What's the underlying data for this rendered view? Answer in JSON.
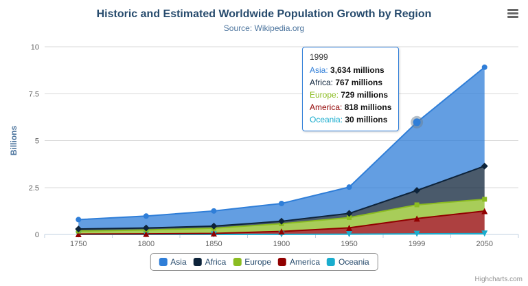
{
  "header": {
    "title": "Historic and Estimated Worldwide Population Growth by Region",
    "subtitle": "Source: Wikipedia.org"
  },
  "chart_data": {
    "type": "area",
    "stacking": "normal",
    "title": "Historic and Estimated Worldwide Population Growth by Region",
    "subtitle": "Source: Wikipedia.org",
    "categories": [
      "1750",
      "1800",
      "1850",
      "1900",
      "1950",
      "1999",
      "2050"
    ],
    "series": [
      {
        "name": "Asia",
        "color": "#2f7ed8",
        "marker": "circle",
        "values": [
          502,
          635,
          809,
          947,
          1402,
          3634,
          5268
        ]
      },
      {
        "name": "Africa",
        "color": "#0d233a",
        "marker": "diamond",
        "values": [
          106,
          107,
          111,
          133,
          221,
          767,
          1766
        ]
      },
      {
        "name": "Europe",
        "color": "#8bbc21",
        "marker": "square",
        "values": [
          163,
          203,
          276,
          408,
          547,
          729,
          628
        ]
      },
      {
        "name": "America",
        "color": "#910000",
        "marker": "triangle",
        "values": [
          18,
          31,
          54,
          156,
          339,
          818,
          1201
        ]
      },
      {
        "name": "Oceania",
        "color": "#1aadce",
        "marker": "triangle-down",
        "values": [
          2,
          2,
          2,
          6,
          13,
          30,
          46
        ]
      }
    ],
    "values_unit": "millions",
    "xlabel": "",
    "ylabel": "Billions",
    "ylim": [
      0,
      10
    ],
    "yticks": [
      0,
      2.5,
      5,
      7.5,
      10
    ],
    "grid": true,
    "legend_position": "bottom",
    "hover_point": {
      "series": "Asia",
      "category_index": 5
    }
  },
  "tooltip": {
    "header": "1999",
    "rows": [
      {
        "label": "Asia",
        "value": "3,634 millions"
      },
      {
        "label": "Africa",
        "value": "767 millions"
      },
      {
        "label": "Europe",
        "value": "729 millions"
      },
      {
        "label": "America",
        "value": "818 millions"
      },
      {
        "label": "Oceania",
        "value": "30 millions"
      }
    ]
  },
  "credits": {
    "label": "Highcharts.com"
  }
}
